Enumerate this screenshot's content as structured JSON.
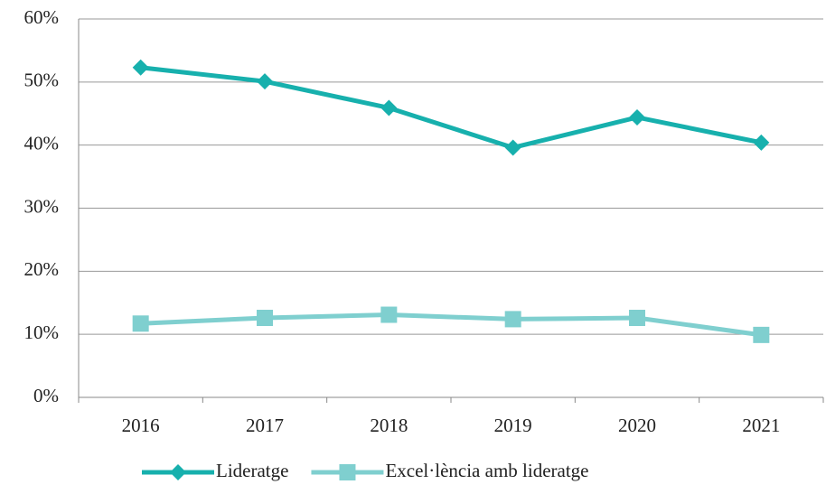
{
  "chart_data": {
    "type": "line",
    "categories": [
      "2016",
      "2017",
      "2018",
      "2019",
      "2020",
      "2021"
    ],
    "series": [
      {
        "name": "Lideratge",
        "color": "#17b0ad",
        "marker": "diamond",
        "values": [
          52.3,
          50.1,
          45.9,
          39.6,
          44.4,
          40.4
        ]
      },
      {
        "name": "Excel·lència amb lideratge",
        "color": "#7fcfcf",
        "marker": "square",
        "values": [
          11.7,
          12.6,
          13.1,
          12.4,
          12.6,
          9.9
        ]
      }
    ],
    "ylim": [
      0,
      60
    ],
    "yticks": [
      {
        "value": 0,
        "label": "0%"
      },
      {
        "value": 10,
        "label": "10%"
      },
      {
        "value": 20,
        "label": "20%"
      },
      {
        "value": 30,
        "label": "30%"
      },
      {
        "value": 40,
        "label": "40%"
      },
      {
        "value": 50,
        "label": "50%"
      },
      {
        "value": 60,
        "label": "60%"
      }
    ],
    "grid": true,
    "legend": "bottom"
  }
}
